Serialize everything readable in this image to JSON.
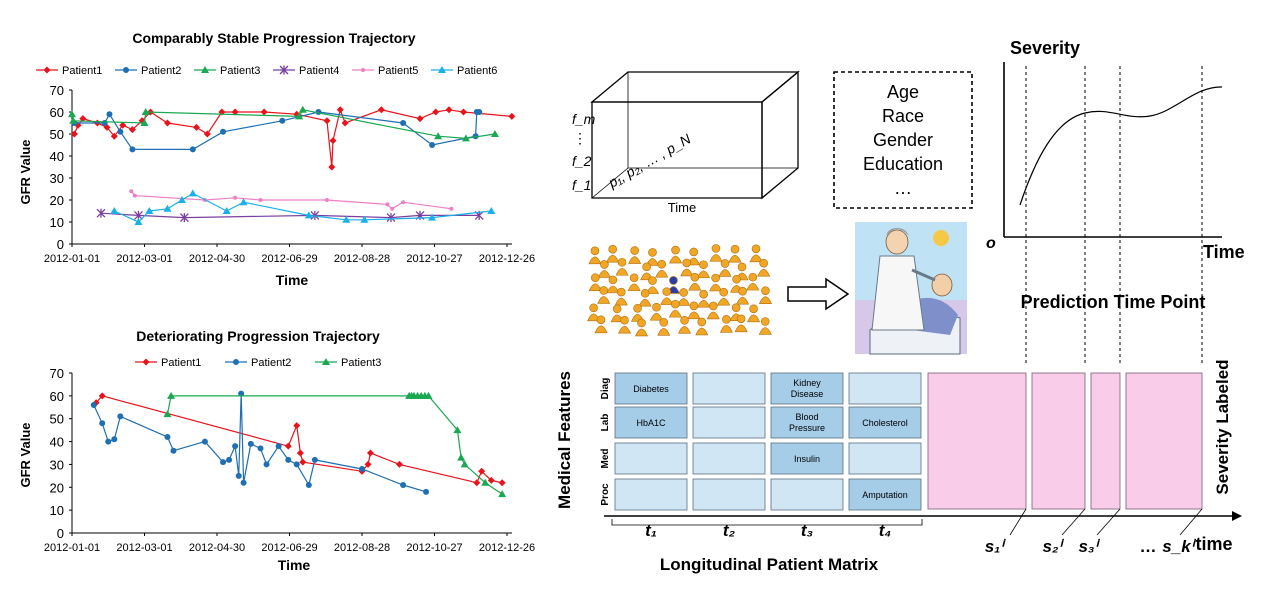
{
  "chart1": {
    "title": "Comparably Stable Progression Trajectory",
    "xlabel": "Time",
    "ylabel": "GFR Value",
    "yticks": [
      "0",
      "10",
      "20",
      "30",
      "40",
      "50",
      "60",
      "70"
    ],
    "xticks": [
      "2012-01-01",
      "2012-03-01",
      "2012-04-30",
      "2012-06-29",
      "2012-08-28",
      "2012-10-27",
      "2012-12-26"
    ],
    "legend": [
      "Patient1",
      "Patient2",
      "Patient3",
      "Patient4",
      "Patient5",
      "Patient6"
    ]
  },
  "chart2": {
    "title": "Deteriorating Progression Trajectory",
    "xlabel": "Time",
    "ylabel": "GFR Value",
    "yticks": [
      "0",
      "10",
      "20",
      "30",
      "40",
      "50",
      "60",
      "70"
    ],
    "xticks": [
      "2012-01-01",
      "2012-03-01",
      "2012-04-30",
      "2012-06-29",
      "2012-08-28",
      "2012-10-27",
      "2012-12-26"
    ],
    "legend": [
      "Patient1",
      "Patient2",
      "Patient3"
    ]
  },
  "cube": {
    "f_m": "f_m",
    "dots": "⋮",
    "f_2": "f_2",
    "f_1": "f_1",
    "patients": "p₁, p₂, … , p_N",
    "time": "Time"
  },
  "demographics": [
    "Age",
    "Race",
    "Gender",
    "Education",
    "…"
  ],
  "severity_chart": {
    "ylabel": "Severity",
    "xlabel": "Time",
    "origin": "o",
    "prediction_label": "Prediction Time Point"
  },
  "matrix": {
    "side_label": "Medical Features",
    "right_label": "Severity Labeled",
    "rows": [
      "Diag",
      "Lab",
      "Med",
      "Proc"
    ],
    "cells": [
      [
        "Diabetes",
        "",
        "Kidney Disease",
        ""
      ],
      [
        "HbA1C",
        "",
        "Blood Pressure",
        "Cholesterol"
      ],
      [
        "",
        "",
        "Insulin",
        ""
      ],
      [
        "",
        "",
        "",
        "Amputation"
      ]
    ],
    "time_labels": [
      "t₁",
      "t₂",
      "t₃",
      "t₄"
    ],
    "bottom_label": "Longitudinal Patient Matrix",
    "s_labels": [
      "s₁ⁱ",
      "s₂ⁱ",
      "s₃ⁱ",
      "…",
      "s_kⁱ"
    ],
    "time_axis": "time"
  },
  "colors": {
    "patient1": "#e8141b",
    "patient2": "#1f6fb4",
    "patient3": "#1aa851",
    "patient4": "#7b3fa0",
    "patient5": "#ee7fc4",
    "patient6": "#1ab0e8",
    "cell_dark": "#a5cde8",
    "cell_light": "#d0e6f4",
    "pink": "#f9cdea"
  },
  "chart_data": [
    {
      "type": "line",
      "title": "Comparably Stable Progression Trajectory",
      "xlabel": "Time",
      "ylabel": "GFR Value",
      "ylim": [
        0,
        70
      ],
      "x_range": [
        "2012-01-01",
        "2012-12-26"
      ],
      "series": [
        {
          "name": "Patient1",
          "points": [
            [
              "2012-01-03",
              50
            ],
            [
              "2012-01-06",
              54
            ],
            [
              "2012-01-10",
              57
            ],
            [
              "2012-01-22",
              55
            ],
            [
              "2012-01-30",
              53
            ],
            [
              "2012-02-05",
              49
            ],
            [
              "2012-02-12",
              54
            ],
            [
              "2012-02-20",
              52
            ],
            [
              "2012-02-28",
              56
            ],
            [
              "2012-03-06",
              60
            ],
            [
              "2012-03-20",
              55
            ],
            [
              "2012-04-13",
              53
            ],
            [
              "2012-04-22",
              50
            ],
            [
              "2012-05-04",
              60
            ],
            [
              "2012-05-15",
              60
            ],
            [
              "2012-06-08",
              60
            ],
            [
              "2012-07-05",
              59
            ],
            [
              "2012-07-30",
              56
            ],
            [
              "2012-08-03",
              35
            ],
            [
              "2012-08-04",
              47
            ],
            [
              "2012-08-10",
              61
            ],
            [
              "2012-08-14",
              55
            ],
            [
              "2012-09-13",
              61
            ],
            [
              "2012-10-15",
              57
            ],
            [
              "2012-10-28",
              60
            ],
            [
              "2012-11-08",
              61
            ],
            [
              "2012-11-20",
              60
            ],
            [
              "2012-12-30",
              58
            ]
          ]
        },
        {
          "name": "Patient2",
          "points": [
            [
              "2012-01-03",
              55
            ],
            [
              "2012-01-28",
              55
            ],
            [
              "2012-02-01",
              59
            ],
            [
              "2012-02-10",
              51
            ],
            [
              "2012-02-20",
              43
            ],
            [
              "2012-04-10",
              43
            ],
            [
              "2012-05-05",
              51
            ],
            [
              "2012-06-23",
              56
            ],
            [
              "2012-07-23",
              60
            ],
            [
              "2012-10-01",
              55
            ],
            [
              "2012-10-25",
              45
            ],
            [
              "2012-11-30",
              49
            ],
            [
              "2012-12-01",
              60
            ],
            [
              "2012-12-03",
              60
            ]
          ]
        },
        {
          "name": "Patient3",
          "points": [
            [
              "2012-01-01",
              59
            ],
            [
              "2012-01-02",
              56
            ],
            [
              "2012-03-01",
              55
            ],
            [
              "2012-03-02",
              60
            ],
            [
              "2012-07-07",
              58
            ],
            [
              "2012-07-10",
              61
            ],
            [
              "2012-10-30",
              49
            ],
            [
              "2012-11-22",
              48
            ],
            [
              "2012-12-16",
              50
            ]
          ]
        },
        {
          "name": "Patient4",
          "points": [
            [
              "2012-01-25",
              14
            ],
            [
              "2012-02-25",
              13
            ],
            [
              "2012-04-03",
              12
            ],
            [
              "2012-07-20",
              13
            ],
            [
              "2012-09-21",
              12
            ],
            [
              "2012-10-15",
              13
            ],
            [
              "2012-12-03",
              13
            ]
          ]
        },
        {
          "name": "Patient5",
          "points": [
            [
              "2012-02-19",
              24
            ],
            [
              "2012-02-22",
              22
            ],
            [
              "2012-04-20",
              20
            ],
            [
              "2012-05-15",
              21
            ],
            [
              "2012-06-05",
              20
            ],
            [
              "2012-07-30",
              20
            ],
            [
              "2012-09-18",
              18
            ],
            [
              "2012-09-22",
              16
            ],
            [
              "2012-10-01",
              19
            ],
            [
              "2012-11-10",
              16
            ]
          ]
        },
        {
          "name": "Patient6",
          "points": [
            [
              "2012-02-05",
              15
            ],
            [
              "2012-02-25",
              10
            ],
            [
              "2012-03-05",
              15
            ],
            [
              "2012-03-20",
              16
            ],
            [
              "2012-04-01",
              20
            ],
            [
              "2012-04-10",
              23
            ],
            [
              "2012-05-08",
              15
            ],
            [
              "2012-05-22",
              19
            ],
            [
              "2012-07-15",
              13
            ],
            [
              "2012-08-15",
              11
            ],
            [
              "2012-08-30",
              11
            ],
            [
              "2012-10-25",
              12
            ],
            [
              "2012-12-13",
              15
            ]
          ]
        }
      ]
    },
    {
      "type": "line",
      "title": "Deteriorating Progression Trajectory",
      "xlabel": "Time",
      "ylabel": "GFR Value",
      "ylim": [
        0,
        70
      ],
      "x_range": [
        "2012-01-01",
        "2012-12-26"
      ],
      "series": [
        {
          "name": "Patient1",
          "points": [
            [
              "2012-01-21",
              57
            ],
            [
              "2012-01-26",
              60
            ],
            [
              "2012-06-28",
              38
            ],
            [
              "2012-07-05",
              47
            ],
            [
              "2012-07-08",
              35
            ],
            [
              "2012-07-10",
              31
            ],
            [
              "2012-08-28",
              27
            ],
            [
              "2012-09-02",
              30
            ],
            [
              "2012-09-04",
              35
            ],
            [
              "2012-09-28",
              30
            ],
            [
              "2012-12-01",
              22
            ],
            [
              "2012-12-05",
              27
            ],
            [
              "2012-12-13",
              23
            ],
            [
              "2012-12-22",
              22
            ]
          ]
        },
        {
          "name": "Patient2",
          "points": [
            [
              "2012-01-19",
              56
            ],
            [
              "2012-01-26",
              48
            ],
            [
              "2012-01-31",
              40
            ],
            [
              "2012-02-05",
              41
            ],
            [
              "2012-02-10",
              51
            ],
            [
              "2012-03-20",
              42
            ],
            [
              "2012-03-25",
              36
            ],
            [
              "2012-04-20",
              40
            ],
            [
              "2012-05-05",
              31
            ],
            [
              "2012-05-10",
              32
            ],
            [
              "2012-05-15",
              38
            ],
            [
              "2012-05-18",
              25
            ],
            [
              "2012-05-20",
              61
            ],
            [
              "2012-05-22",
              22
            ],
            [
              "2012-05-28",
              39
            ],
            [
              "2012-06-05",
              37
            ],
            [
              "2012-06-10",
              30
            ],
            [
              "2012-06-20",
              38
            ],
            [
              "2012-06-28",
              32
            ],
            [
              "2012-07-05",
              30
            ],
            [
              "2012-07-15",
              21
            ],
            [
              "2012-07-20",
              32
            ],
            [
              "2012-08-28",
              28
            ],
            [
              "2012-10-01",
              21
            ],
            [
              "2012-10-20",
              18
            ]
          ]
        },
        {
          "name": "Patient3",
          "points": [
            [
              "2012-03-20",
              52
            ],
            [
              "2012-03-23",
              60
            ],
            [
              "2012-10-06",
              60
            ],
            [
              "2012-10-08",
              60
            ],
            [
              "2012-10-10",
              60
            ],
            [
              "2012-10-13",
              60
            ],
            [
              "2012-10-16",
              60
            ],
            [
              "2012-10-19",
              60
            ],
            [
              "2012-10-22",
              60
            ],
            [
              "2012-11-15",
              45
            ],
            [
              "2012-11-18",
              33
            ],
            [
              "2012-11-21",
              30
            ],
            [
              "2012-12-08",
              22
            ],
            [
              "2012-12-22",
              17
            ]
          ]
        }
      ]
    }
  ]
}
